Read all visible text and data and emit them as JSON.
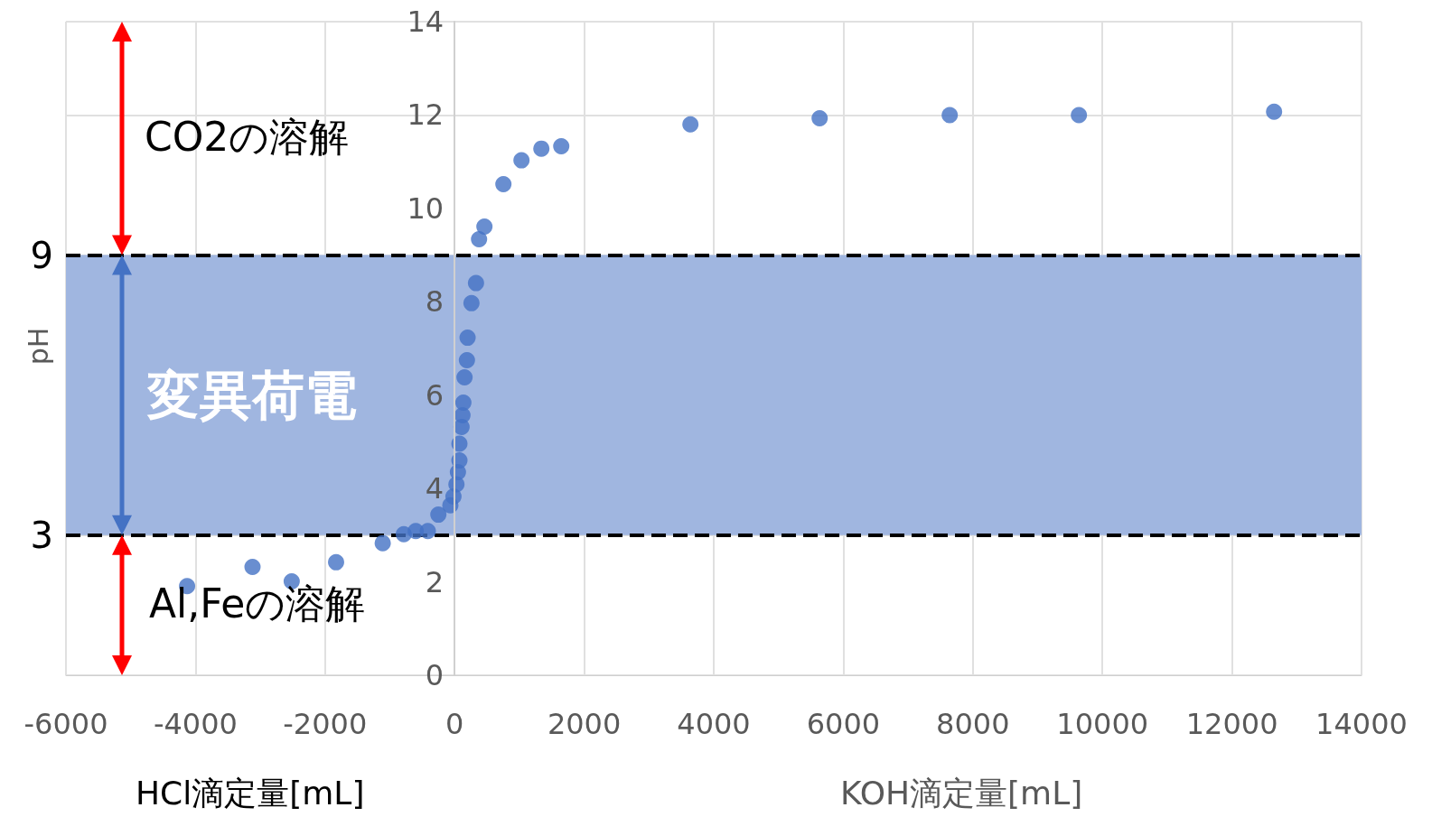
{
  "chart_data": {
    "type": "scatter",
    "ylabel": "pH",
    "annotations": [
      "CO2の溶解",
      "Al,Feの溶解",
      "HCl滴定量[mL]",
      "KOH滴定量[mL]"
    ],
    "x": [
      -4130,
      -3120,
      -2515,
      -1830,
      -1110,
      -785,
      -600,
      -414,
      -251,
      -66,
      -18,
      28,
      51,
      74,
      74,
      107,
      121,
      135,
      153,
      190,
      200,
      260,
      330,
      377,
      460,
      753,
      1032,
      1339,
      1646,
      3640,
      5635,
      7643,
      9637,
      12650
    ],
    "values": [
      1.91,
      2.32,
      2.01,
      2.42,
      2.83,
      3.02,
      3.09,
      3.09,
      3.44,
      3.64,
      3.83,
      4.09,
      4.35,
      4.6,
      4.96,
      5.32,
      5.57,
      5.84,
      6.38,
      6.75,
      7.23,
      7.97,
      8.4,
      9.34,
      9.61,
      10.52,
      11.03,
      11.28,
      11.33,
      11.8,
      11.93,
      12.0,
      12.0,
      12.07
    ],
    "color": "#4472c4",
    "marker": "circle",
    "xlim": [
      -6000,
      14000
    ],
    "xticks": [
      -6000,
      -4000,
      -2000,
      0,
      2000,
      4000,
      6000,
      8000,
      10000,
      12000,
      14000
    ],
    "ylim": [
      0,
      14
    ],
    "yticks": [
      0,
      2,
      4,
      6,
      8,
      10,
      12,
      14
    ],
    "grid": true,
    "bands": [
      {
        "axis": "y",
        "from": 3,
        "to": 9,
        "label": "変異荷電",
        "color": "#a0b6e0"
      }
    ],
    "ref_lines": [
      {
        "axis": "y",
        "value": 9,
        "label": "9",
        "color": "#000000",
        "line_style": "dashed"
      },
      {
        "axis": "y",
        "value": 3,
        "label": "3",
        "color": "#000000",
        "line_style": "dashed"
      }
    ]
  }
}
